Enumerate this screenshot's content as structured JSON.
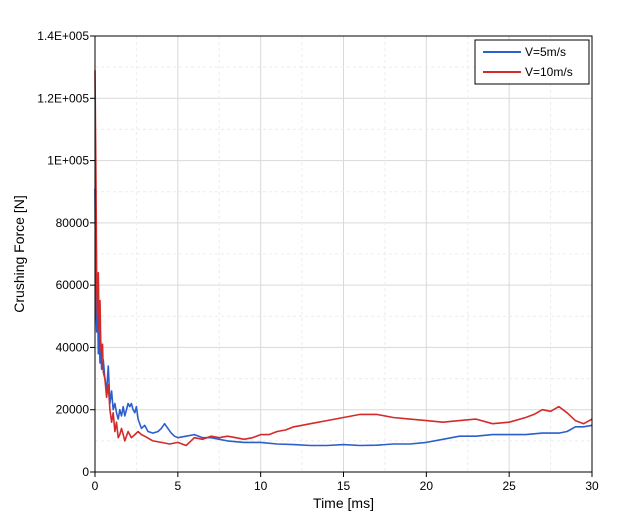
{
  "chart_data": {
    "type": "line",
    "xlabel": "Time [ms]",
    "ylabel": "Crushing Force [N]",
    "xlim": [
      0,
      30
    ],
    "ylim": [
      0,
      140000
    ],
    "xticks": [
      0,
      5,
      10,
      15,
      20,
      25,
      30
    ],
    "xtick_labels": [
      "0",
      "5",
      "10",
      "15",
      "20",
      "25",
      "30"
    ],
    "yticks": [
      0,
      20000,
      40000,
      60000,
      80000,
      100000,
      120000,
      140000
    ],
    "ytick_labels": [
      "0",
      "20000",
      "40000",
      "60000",
      "80000",
      "1E+005",
      "1.2E+005",
      "1.4E+005"
    ],
    "grid": true,
    "legend_position": "top-right",
    "series": [
      {
        "name": "V=5m/s",
        "color": "#2b5fce",
        "x": [
          0,
          0.05,
          0.1,
          0.15,
          0.2,
          0.25,
          0.3,
          0.35,
          0.4,
          0.5,
          0.6,
          0.7,
          0.8,
          0.9,
          1.0,
          1.1,
          1.2,
          1.3,
          1.4,
          1.5,
          1.6,
          1.7,
          1.8,
          1.9,
          2.0,
          2.1,
          2.2,
          2.3,
          2.4,
          2.5,
          2.6,
          2.8,
          3.0,
          3.2,
          3.5,
          3.8,
          4.0,
          4.2,
          4.4,
          4.6,
          4.8,
          5.0,
          5.5,
          6.0,
          6.5,
          7.0,
          7.5,
          8.0,
          9.0,
          10.0,
          11.0,
          12.0,
          13.0,
          14.0,
          15.0,
          16.0,
          17.0,
          18.0,
          19.0,
          20.0,
          21.0,
          22.0,
          23.0,
          24.0,
          25.0,
          26.0,
          27.0,
          28.0,
          28.5,
          29.0,
          29.5,
          30.0
        ],
        "y": [
          91000,
          55000,
          45000,
          60000,
          38000,
          48000,
          35000,
          42000,
          33000,
          36000,
          30000,
          26000,
          34000,
          22000,
          26000,
          20000,
          22000,
          19000,
          17000,
          20000,
          18000,
          21000,
          18000,
          20000,
          22000,
          21000,
          22000,
          20000,
          19000,
          21000,
          17000,
          14000,
          15000,
          13000,
          12500,
          13000,
          14000,
          15500,
          14000,
          12500,
          11500,
          11000,
          11500,
          12000,
          11000,
          11000,
          10500,
          10000,
          9500,
          9500,
          9000,
          8800,
          8500,
          8500,
          8800,
          8500,
          8600,
          9000,
          9000,
          9500,
          10500,
          11500,
          11500,
          12000,
          12000,
          12000,
          12500,
          12500,
          13000,
          14500,
          14500,
          15000
        ]
      },
      {
        "name": "V=10m/s",
        "color": "#d42a2a",
        "x": [
          0,
          0.03,
          0.06,
          0.1,
          0.15,
          0.2,
          0.25,
          0.3,
          0.35,
          0.4,
          0.45,
          0.5,
          0.6,
          0.7,
          0.8,
          0.9,
          1.0,
          1.1,
          1.2,
          1.3,
          1.4,
          1.5,
          1.6,
          1.7,
          1.8,
          2.0,
          2.2,
          2.4,
          2.6,
          2.8,
          3.0,
          3.5,
          4.0,
          4.5,
          5.0,
          5.5,
          6.0,
          6.5,
          7.0,
          7.5,
          8.0,
          8.5,
          9.0,
          9.5,
          10.0,
          10.5,
          11.0,
          11.5,
          12.0,
          12.5,
          13.0,
          14.0,
          15.0,
          16.0,
          17.0,
          18.0,
          19.0,
          20.0,
          21.0,
          22.0,
          23.0,
          24.0,
          25.0,
          26.0,
          26.5,
          27.0,
          27.5,
          28.0,
          28.5,
          29.0,
          29.5,
          30.0
        ],
        "y": [
          129000,
          110000,
          92000,
          60000,
          50000,
          64000,
          45000,
          55000,
          40000,
          38000,
          41000,
          32000,
          30000,
          24000,
          28000,
          20000,
          16000,
          19000,
          13000,
          16000,
          11000,
          12000,
          14000,
          12000,
          10000,
          13000,
          11000,
          12000,
          13000,
          12000,
          11500,
          10000,
          9500,
          9000,
          9500,
          8500,
          11000,
          10500,
          11500,
          11000,
          11500,
          11000,
          10500,
          11000,
          12000,
          12000,
          13000,
          13500,
          14500,
          15000,
          15500,
          16500,
          17500,
          18500,
          18500,
          17500,
          17000,
          16500,
          16000,
          16500,
          17000,
          15500,
          16000,
          17500,
          18500,
          20000,
          19500,
          21000,
          19000,
          16500,
          15500,
          17000
        ]
      }
    ]
  }
}
